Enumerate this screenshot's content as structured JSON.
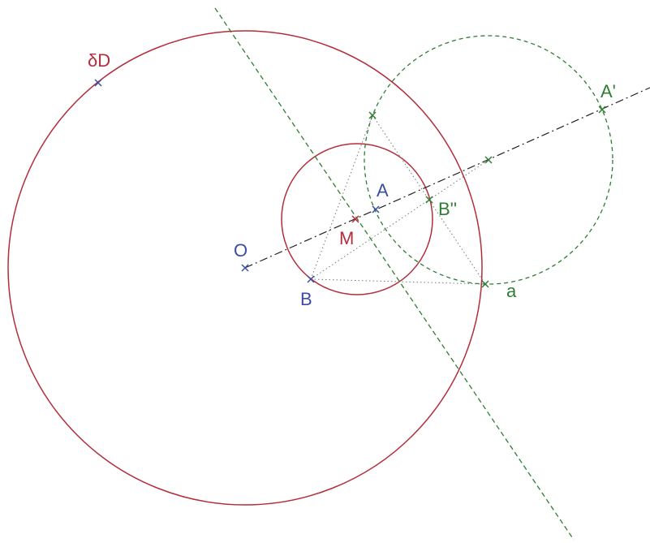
{
  "points": [
    {
      "label": "δD"
    },
    {
      "label": "A'"
    },
    {
      "label": "A"
    },
    {
      "label": "B''"
    },
    {
      "label": "M"
    },
    {
      "label": "O"
    },
    {
      "label": "B"
    },
    {
      "label": "a"
    }
  ]
}
